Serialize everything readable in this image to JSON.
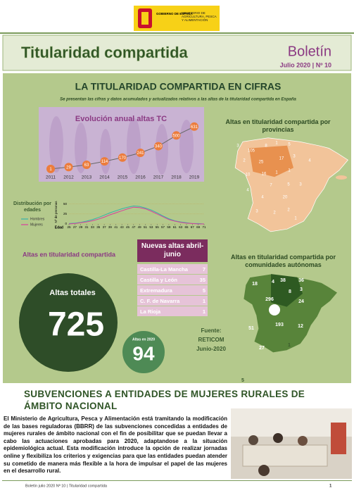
{
  "header": {
    "government": "GOBIERNO DE ESPAÑA",
    "ministry": "MINISTERIO DE AGRICULTURA, PESCA Y ALIMENTACIÓN"
  },
  "banner": {
    "title": "Titularidad compartida",
    "publication": "Boletín",
    "issue": "Julio 2020 | Nº 10"
  },
  "section": {
    "title": "LA TITULARIDAD COMPARTIDA EN CIFRAS",
    "subtitle": "Se presentan las cifras y datos acumulados y actualizados relativos a las altas de la titularidad compartida en España"
  },
  "annual_chart": {
    "type": "line",
    "title": "Evolución anual altas TC",
    "categories": [
      "2011",
      "2012",
      "2013",
      "2014",
      "2015",
      "2016",
      "2017",
      "2018",
      "2019"
    ],
    "values": [
      1,
      29,
      63,
      114,
      170,
      241,
      340,
      500,
      631
    ],
    "color": "#ec7c3c",
    "ylim": [
      0,
      650
    ]
  },
  "age_chart": {
    "type": "line",
    "title": "Distribución por edades",
    "ylabel": "Nº de personas",
    "xlabel": "Edad",
    "x": [
      25,
      27,
      29,
      31,
      33,
      35,
      37,
      39,
      41,
      43,
      45,
      47,
      49,
      51,
      53,
      55,
      57,
      59,
      61,
      63,
      65,
      67,
      69,
      71
    ],
    "xlim": [
      25,
      71
    ],
    "xticks": [
      25,
      27,
      29,
      31,
      33,
      35,
      37,
      39,
      41,
      43,
      45,
      47,
      49,
      51,
      53,
      55,
      57,
      59,
      61,
      63,
      65,
      67,
      69,
      71
    ],
    "ylim": [
      0,
      60
    ],
    "yticks": [
      0,
      25,
      50
    ],
    "series": [
      {
        "name": "Hombres",
        "color": "#35b3aa",
        "values": [
          1,
          2,
          4,
          7,
          11,
          16,
          22,
          28,
          33,
          38,
          42,
          45,
          44,
          40,
          35,
          28,
          20,
          13,
          8,
          5,
          3,
          1,
          1,
          0
        ]
      },
      {
        "name": "Mujeres",
        "color": "#d8409c",
        "values": [
          0,
          1,
          3,
          5,
          8,
          12,
          17,
          23,
          28,
          33,
          38,
          42,
          41,
          38,
          32,
          25,
          18,
          11,
          7,
          4,
          2,
          1,
          0,
          0
        ]
      }
    ]
  },
  "totals": {
    "title": "Altas en titularidad compartida",
    "total_label": "Altas totales",
    "total": 725,
    "year_label": "Altas en 2020",
    "year_total": 94
  },
  "new_table": {
    "title": "Nuevas altas abril-junio",
    "rows": [
      [
        "Castilla-La Mancha",
        7
      ],
      [
        "Castilla y León",
        35
      ],
      [
        "Extremadura",
        5
      ],
      [
        "C. F. de Navarra",
        1
      ],
      [
        "La Rioja",
        1
      ]
    ]
  },
  "province_map": {
    "title": "Altas en titularidad compartida por provincias",
    "labels": [
      3,
      105,
      8,
      1,
      5,
      2,
      25,
      17,
      3,
      10,
      16,
      1,
      1,
      4,
      7,
      5,
      3,
      4,
      4,
      20,
      3,
      2,
      2,
      1
    ]
  },
  "region_map": {
    "title": "Altas en titularidad compartida por comunidades autónomas",
    "labels": [
      18,
      4,
      38,
      36,
      3,
      296,
      24,
      8,
      193,
      51,
      12,
      27,
      1,
      5
    ]
  },
  "source": {
    "label": "Fuente:",
    "name": "RETICOM",
    "date": "Junio-2020"
  },
  "article": {
    "title": "SUBVENCIONES A ENTIDADES DE MUJERES RURALES DE ÁMBITO NACIONAL",
    "body": "El Ministerio de Agricultura, Pesca y Alimentación está tramitando la modificación de las bases reguladoras (BBRR) de las subvenciones concedidas a entidades de mujeres rurales de ámbito nacional con el fin de posibilitar que se puedan llevar a cabo las actuaciones aprobadas para 2020, adaptandose a la situación epidemiológica actual. Esta modificación introduce la opción de realizar jornadas online y flexibiliza los criterios y exigencias para que las entidades puedan atender su cometido de manera más flexible a la hora de impulsar el papel de las mujeres en el desarrollo rural."
  },
  "footer": {
    "text": "Boletín julio 2020 Nº 10 | Titularidad compartida",
    "page": 1
  }
}
